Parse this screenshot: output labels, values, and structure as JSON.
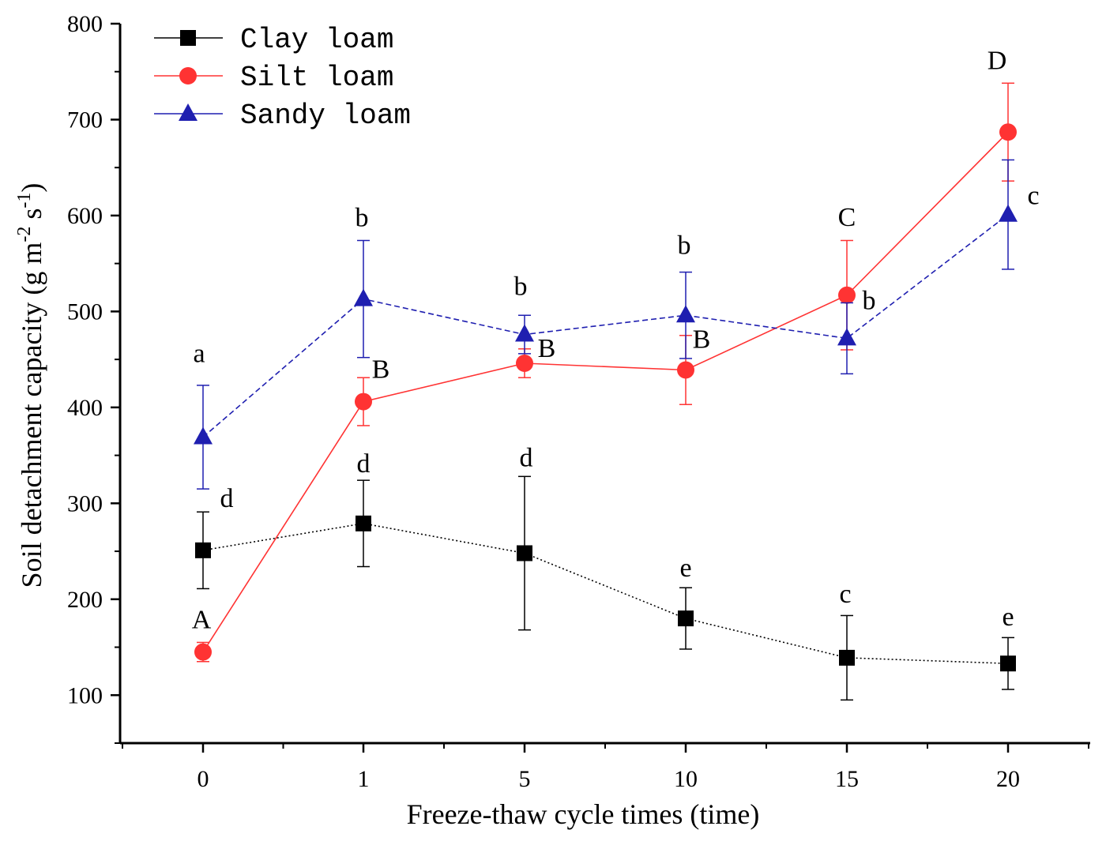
{
  "chart_data": {
    "type": "line",
    "title": "",
    "xlabel": "Freeze-thaw cycle times (time)",
    "ylabel_main": "Soil detachment capacity (g m",
    "ylabel_exp1": "-2",
    "ylabel_mid": " s",
    "ylabel_exp2": "-1",
    "ylabel_end": ")",
    "categories": [
      "0",
      "1",
      "5",
      "10",
      "15",
      "20"
    ],
    "ylim": [
      50,
      800
    ],
    "yticks": [
      100,
      200,
      300,
      400,
      500,
      600,
      700,
      800
    ],
    "ytick_labels": [
      "100",
      "200",
      "300",
      "400",
      "500",
      "600",
      "700",
      "800"
    ],
    "legend_position": "top-left",
    "series": [
      {
        "name": "Clay loam",
        "color": "#000000",
        "marker": "square",
        "line_style": "dotted",
        "values": [
          251,
          279,
          248,
          180,
          139,
          133
        ],
        "errors": [
          40,
          45,
          80,
          32,
          44,
          27
        ],
        "labels": [
          "d",
          "d",
          "d",
          "e",
          "c",
          "e"
        ]
      },
      {
        "name": "Silt loam",
        "color": "#ff3333",
        "marker": "circle",
        "line_style": "solid",
        "values": [
          145,
          406,
          446,
          439,
          517,
          687
        ],
        "errors": [
          10,
          25,
          15,
          36,
          57,
          51
        ],
        "labels": [
          "A",
          "B",
          "B",
          "B",
          "C",
          "D"
        ]
      },
      {
        "name": "Sandy loam",
        "color": "#1f1fb0",
        "marker": "triangle",
        "line_style": "dashed",
        "values": [
          369,
          513,
          476,
          496,
          472,
          601
        ],
        "errors": [
          54,
          61,
          20,
          45,
          37,
          57
        ],
        "labels": [
          "a",
          "b",
          "b",
          "b",
          "b",
          "c"
        ]
      }
    ]
  }
}
